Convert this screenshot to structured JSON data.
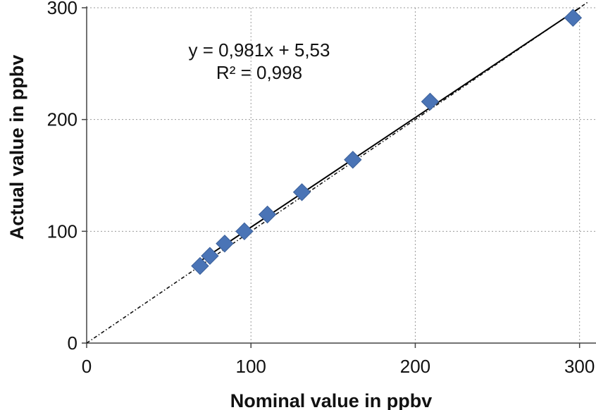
{
  "chart_data": {
    "type": "scatter",
    "title": "",
    "xlabel": "Nominal value in ppbv",
    "ylabel": "Actual value in ppbv",
    "xlim": [
      0,
      310
    ],
    "ylim": [
      0,
      300
    ],
    "x_ticks": [
      0,
      100,
      200,
      300
    ],
    "y_ticks": [
      0,
      100,
      200,
      300
    ],
    "grid": true,
    "legend": "none",
    "marker_color": "#4a74b6",
    "points": [
      {
        "x": 69,
        "y": 69
      },
      {
        "x": 75,
        "y": 78
      },
      {
        "x": 84,
        "y": 89
      },
      {
        "x": 96,
        "y": 100
      },
      {
        "x": 110,
        "y": 115
      },
      {
        "x": 131,
        "y": 135
      },
      {
        "x": 162,
        "y": 164
      },
      {
        "x": 209,
        "y": 216
      },
      {
        "x": 296,
        "y": 291
      }
    ],
    "trendline": {
      "slope": 0.981,
      "intercept": 5.53,
      "x_range": [
        69,
        300
      ]
    },
    "identity_line": {
      "x_range": [
        0,
        305
      ]
    },
    "annotation": {
      "equation": "y = 0,981x + 5,53",
      "r_squared": "R² = 0,998"
    }
  }
}
